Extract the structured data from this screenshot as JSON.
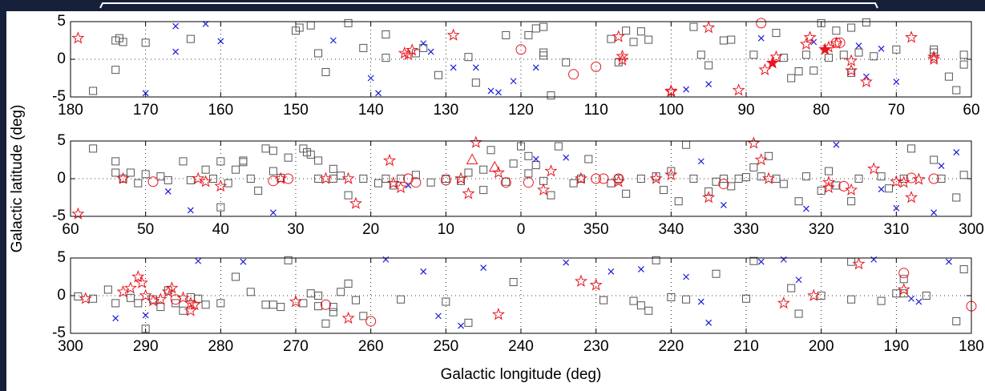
{
  "chart_data": [
    {
      "type": "scatter",
      "xlim": [
        180,
        60
      ],
      "ylim": [
        -5,
        5
      ],
      "xticks": [
        180,
        170,
        160,
        150,
        140,
        130,
        120,
        110,
        100,
        90,
        80,
        70,
        60
      ],
      "yticks": [
        -5,
        0,
        5
      ],
      "grid": true,
      "series": [
        {
          "marker": "square",
          "color": "#555555",
          "x": [
            177,
            174,
            173.5,
            173,
            174,
            170,
            164,
            150,
            149.5,
            148,
            147,
            146,
            143,
            141,
            138,
            138,
            134,
            133,
            131,
            127,
            126,
            122,
            119,
            118,
            117,
            117,
            117,
            116,
            114,
            108,
            107,
            106,
            105,
            104,
            103,
            97,
            96,
            95,
            93,
            92,
            89,
            86,
            85,
            84,
            82,
            80,
            78,
            76,
            75,
            74,
            73,
            70,
            65,
            65,
            63,
            61,
            61,
            62,
            76,
            77,
            81,
            83,
            79
          ],
          "values": [
            -4.2,
            2.5,
            2.8,
            2.3,
            -1.4,
            2.2,
            2.7,
            3.8,
            4.2,
            4.5,
            0.8,
            -1.7,
            4.8,
            1.5,
            3.3,
            0.2,
            0.8,
            1.5,
            -2.1,
            0.3,
            -3.1,
            3.2,
            3.2,
            4.1,
            4.3,
            0.9,
            0.5,
            -4.8,
            -0.4,
            2.7,
            -0.4,
            3.8,
            2.3,
            3.7,
            2.6,
            4.3,
            0.6,
            -0.8,
            2.5,
            2.6,
            0.6,
            3.5,
            0.2,
            -2.5,
            0.6,
            4.8,
            3.8,
            4.2,
            0.9,
            4.9,
            0.4,
            1.3,
            0.9,
            1.3,
            -2.3,
            0.6,
            -0.7,
            -4.1,
            -1.8,
            0.6,
            -1.5,
            -1.6,
            0.2
          ]
        },
        {
          "marker": "cross",
          "color": "#1a1adb",
          "x": [
            170,
            166,
            166,
            162,
            160,
            145,
            140,
            139,
            133,
            132,
            129,
            126,
            124,
            123,
            121,
            118,
            98,
            95,
            88,
            81,
            75,
            72,
            70,
            74
          ],
          "values": [
            -4.5,
            4.4,
            1.0,
            4.7,
            2.4,
            2.5,
            -2.5,
            -4.5,
            2.1,
            1.0,
            -1.1,
            -1.1,
            -4.2,
            -4.4,
            -2.9,
            -1.1,
            -4.0,
            -3.3,
            2.8,
            2.3,
            1.8,
            1.4,
            -3.0,
            -2.3
          ]
        },
        {
          "marker": "star",
          "color": "#e8141e",
          "x": [
            179,
            135.5,
            134.5,
            135,
            129,
            107,
            106.5,
            106.5,
            100,
            100,
            95,
            91,
            87.5,
            86,
            81.5,
            82,
            79,
            76,
            76,
            74,
            68,
            65,
            65,
            78
          ],
          "values": [
            2.8,
            0.8,
            1.2,
            0.6,
            3.2,
            3.0,
            0.4,
            -0.1,
            -4.3,
            -4.2,
            4.2,
            -4.1,
            -1.4,
            0.3,
            2.9,
            2.0,
            1.6,
            -0.2,
            -1.5,
            -3.0,
            2.9,
            0.3,
            0.0,
            2.1
          ]
        },
        {
          "marker": "circle",
          "color": "#e8141e",
          "x": [
            120,
            113,
            110,
            88,
            78,
            77.5
          ],
          "values": [
            1.3,
            -2.0,
            -1.0,
            4.8,
            2.2,
            2.2
          ]
        },
        {
          "marker": "filled-star",
          "color": "#e8141e",
          "x": [
            86.5,
            79.5
          ],
          "values": [
            -0.5,
            1.3
          ]
        }
      ]
    },
    {
      "type": "scatter",
      "ylabel": "Galactic latitude (deg)",
      "xlim": [
        60,
        -60
      ],
      "ylim": [
        -5,
        5
      ],
      "xticks": [
        60,
        50,
        40,
        30,
        20,
        10,
        0,
        {
          "value": -10,
          "label": "350"
        },
        {
          "value": -20,
          "label": "340"
        },
        {
          "value": -30,
          "label": "330"
        },
        {
          "value": -40,
          "label": "320"
        },
        {
          "value": -50,
          "label": "310"
        },
        {
          "value": -60,
          "label": "300"
        }
      ],
      "yticks": [
        -5,
        0,
        5
      ],
      "grid": true,
      "series": [
        {
          "marker": "square",
          "color": "#555555",
          "x": [
            57,
            54,
            54,
            53,
            52,
            51,
            50,
            48,
            47,
            45,
            44,
            42,
            41,
            40,
            40,
            39,
            38,
            37,
            37,
            36,
            35,
            34,
            33,
            33,
            32,
            31,
            29,
            28.5,
            28,
            27,
            27,
            25,
            25,
            24,
            23,
            21,
            19,
            18,
            17,
            16,
            14,
            12,
            10,
            8,
            7,
            5,
            5,
            4,
            2,
            1,
            0,
            -1,
            -1,
            -2,
            -3,
            -4,
            -5,
            -7,
            -8,
            -9,
            -12,
            -13,
            -14,
            -16,
            -18,
            -19,
            -20,
            -21,
            -22,
            -23,
            -25,
            -26,
            -27,
            -28,
            -29,
            -30,
            -31,
            -32,
            -33,
            -34,
            -35,
            -37,
            -38,
            -40,
            -41,
            -42,
            -44,
            -45,
            -48,
            -49,
            -51,
            -52,
            -55,
            -56,
            -58,
            -59
          ],
          "values": [
            4,
            0.8,
            2.3,
            0,
            0.8,
            -0.6,
            0.6,
            0.3,
            -0.2,
            2.3,
            -0.2,
            1.2,
            0,
            2.3,
            -3.8,
            -0.6,
            1.2,
            2.2,
            2.4,
            0,
            -1.6,
            4,
            3.7,
            1,
            0.1,
            2.8,
            4,
            3.5,
            3.2,
            0,
            2.4,
            0,
            1.3,
            0.4,
            -2.2,
            0,
            -0.6,
            0,
            -0.9,
            0,
            0.5,
            -0.5,
            0,
            -0.3,
            0.8,
            -1.5,
            1.2,
            3.8,
            -0.4,
            2,
            4.3,
            3,
            0.7,
            1.8,
            -0.3,
            -2.2,
            4.3,
            -0.6,
            0,
            2.6,
            -0.6,
            0,
            -2,
            0,
            0.3,
            -1.5,
            1,
            -3,
            4.5,
            0,
            -1.7,
            -0.4,
            0,
            -1,
            0,
            0.2,
            1.5,
            0.3,
            3,
            0,
            -0.7,
            -3,
            0.3,
            -1.6,
            1,
            -0.9,
            -3,
            0,
            0.3,
            -1.3,
            0,
            4,
            2.5,
            0,
            -2.5,
            0.5
          ]
        },
        {
          "marker": "cross",
          "color": "#1a1adb",
          "x": [
            47,
            44,
            33,
            15,
            -2,
            -6,
            -24,
            -27,
            -38,
            -42,
            -50,
            -56,
            -55,
            -58,
            -48
          ],
          "values": [
            -1.7,
            -4.2,
            -4.5,
            -0.9,
            2.6,
            2.8,
            2.3,
            -3.5,
            -4,
            4.5,
            -3.9,
            1.7,
            -4.5,
            3.5,
            -1.4
          ]
        },
        {
          "marker": "star",
          "color": "#e8141e",
          "x": [
            59,
            53,
            43,
            42,
            40,
            32,
            26,
            23,
            22,
            17.5,
            17,
            16,
            8,
            7,
            6,
            3,
            -3,
            -4,
            -8,
            -13,
            -18,
            -20,
            -25,
            -31,
            -32,
            -33,
            -41,
            -41,
            -44,
            -47,
            -50,
            -51,
            -52,
            -53
          ],
          "values": [
            -4.7,
            0,
            0,
            -0.4,
            -1,
            0,
            0,
            0,
            -3.3,
            2.4,
            -0.6,
            -1.2,
            0,
            -2,
            4.8,
            0.8,
            -1.5,
            1,
            0,
            -0.4,
            0,
            0.5,
            -2.5,
            4.7,
            2.5,
            0,
            -0.5,
            -1.2,
            -1.5,
            1.3,
            -0.4,
            -0.5,
            -2.5,
            -0.1
          ]
        },
        {
          "marker": "circle",
          "color": "#e8141e",
          "x": [
            49,
            33,
            31,
            15,
            14,
            10,
            2,
            -1,
            -10,
            -11,
            -13,
            -27,
            -43,
            -52,
            -55
          ],
          "values": [
            -0.4,
            -0.3,
            0,
            0,
            -0.5,
            -0.2,
            -0.5,
            -0.5,
            0,
            0,
            0,
            -0.7,
            -1,
            0.1,
            0
          ]
        },
        {
          "marker": "triangle",
          "color": "#e8141e",
          "x": [
            6.5,
            3.5
          ],
          "values": [
            2.5,
            1.5
          ]
        }
      ]
    },
    {
      "type": "scatter",
      "xlabel": "Galactic longitude (deg)",
      "xlim": [
        300,
        180
      ],
      "ylim": [
        -5,
        5
      ],
      "xticks": [
        300,
        290,
        280,
        270,
        260,
        250,
        240,
        230,
        220,
        210,
        200,
        190,
        180
      ],
      "yticks": [
        -5,
        0,
        5
      ],
      "grid": true,
      "series": [
        {
          "marker": "square",
          "color": "#555555",
          "x": [
            299,
            297,
            295,
            294,
            292,
            291,
            290,
            289,
            288,
            287,
            286,
            285,
            284,
            283,
            282,
            280,
            278,
            276,
            274,
            273,
            272,
            271,
            269,
            268,
            267,
            267,
            266,
            265,
            265,
            264,
            263,
            262,
            261,
            256,
            250,
            247,
            241,
            229,
            225,
            224,
            223,
            222,
            220,
            218,
            214,
            210,
            204,
            203,
            200,
            196,
            192,
            190,
            189,
            189,
            186,
            181,
            182,
            196,
            209
          ],
          "values": [
            -0.1,
            -0.4,
            0.8,
            -1,
            -0.3,
            -1,
            -4.4,
            -0.5,
            -1.5,
            0.7,
            -1,
            -2,
            -0.2,
            -0.4,
            -1.2,
            -1,
            2.5,
            0.5,
            -1.2,
            -1.2,
            -1.5,
            4.7,
            -1,
            0.3,
            0,
            -1.4,
            -3.7,
            -1.5,
            -2.2,
            0.5,
            1.6,
            -0.6,
            -2.7,
            -0.5,
            -0.8,
            -3.6,
            1.8,
            -0.6,
            -0.7,
            -1.3,
            -2,
            4.7,
            -0.2,
            -0.5,
            2.9,
            -0.4,
            1,
            -2.4,
            0,
            -0.5,
            -0.7,
            0.3,
            2.2,
            0.3,
            0,
            3.5,
            -3.4,
            4.5,
            4.6
          ]
        },
        {
          "marker": "cross",
          "color": "#1a1adb",
          "x": [
            294,
            290,
            283,
            277,
            258,
            253,
            251,
            248,
            245,
            234,
            228,
            224,
            218,
            215,
            216,
            208,
            205,
            203,
            193,
            188,
            183,
            187
          ],
          "values": [
            -3,
            -2.6,
            4.6,
            4.5,
            4.8,
            3.2,
            -2.7,
            -4,
            3.7,
            4.4,
            3.2,
            3.5,
            2.5,
            -3.6,
            -0.8,
            4.5,
            4.8,
            2.1,
            4.8,
            -0.4,
            4.5,
            -0.8
          ]
        },
        {
          "marker": "star",
          "color": "#e8141e",
          "x": [
            298,
            293,
            292,
            291,
            290.5,
            290,
            289,
            288,
            287,
            286.5,
            285,
            284,
            284,
            283.5,
            270,
            263,
            243,
            232,
            230,
            205,
            201,
            195,
            189
          ],
          "values": [
            -0.4,
            0.5,
            1,
            2.5,
            1.7,
            0,
            -0.7,
            -0.5,
            0.5,
            1,
            -0.3,
            -1,
            -2,
            -1.2,
            -0.8,
            -3,
            -2.5,
            1.9,
            1.4,
            -1,
            0,
            4.2,
            0.8
          ]
        },
        {
          "marker": "circle",
          "color": "#e8141e",
          "x": [
            286,
            266,
            260,
            189,
            180
          ],
          "values": [
            -0.5,
            -1.2,
            -3.4,
            3,
            -1.4
          ]
        }
      ]
    }
  ]
}
